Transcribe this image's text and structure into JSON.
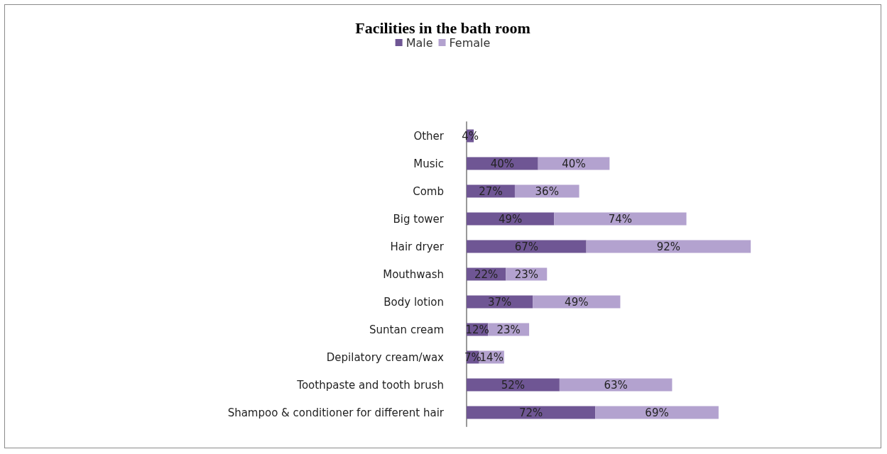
{
  "chart_data": {
    "type": "bar",
    "title": "Facilities in the bath room",
    "orientation": "horizontal",
    "stacked": true,
    "legend": "top",
    "categories": [
      "Other",
      "Music",
      "Comb",
      "Big tower",
      "Hair dryer",
      "Mouthwash",
      "Body lotion",
      "Suntan cream",
      "Depilatory cream/wax",
      "Toothpaste and tooth brush",
      "Shampoo & conditioner for different hair"
    ],
    "series": [
      {
        "name": "Male",
        "color": "#6f5694",
        "values": [
          4,
          40,
          27,
          49,
          67,
          22,
          37,
          12,
          7,
          52,
          72
        ],
        "value_labels": [
          "4%",
          "40%",
          "27%",
          "49%",
          "67%",
          "22%",
          "37%",
          "12%",
          "7%",
          "52%",
          "72%"
        ]
      },
      {
        "name": "Female",
        "color": "#b3a2cf",
        "values": [
          null,
          40,
          36,
          74,
          92,
          23,
          49,
          23,
          14,
          63,
          69
        ],
        "value_labels": [
          null,
          "40%",
          "36%",
          "74%",
          "92%",
          "23%",
          "49%",
          "23%",
          "14%",
          "63%",
          "69%"
        ]
      }
    ]
  }
}
